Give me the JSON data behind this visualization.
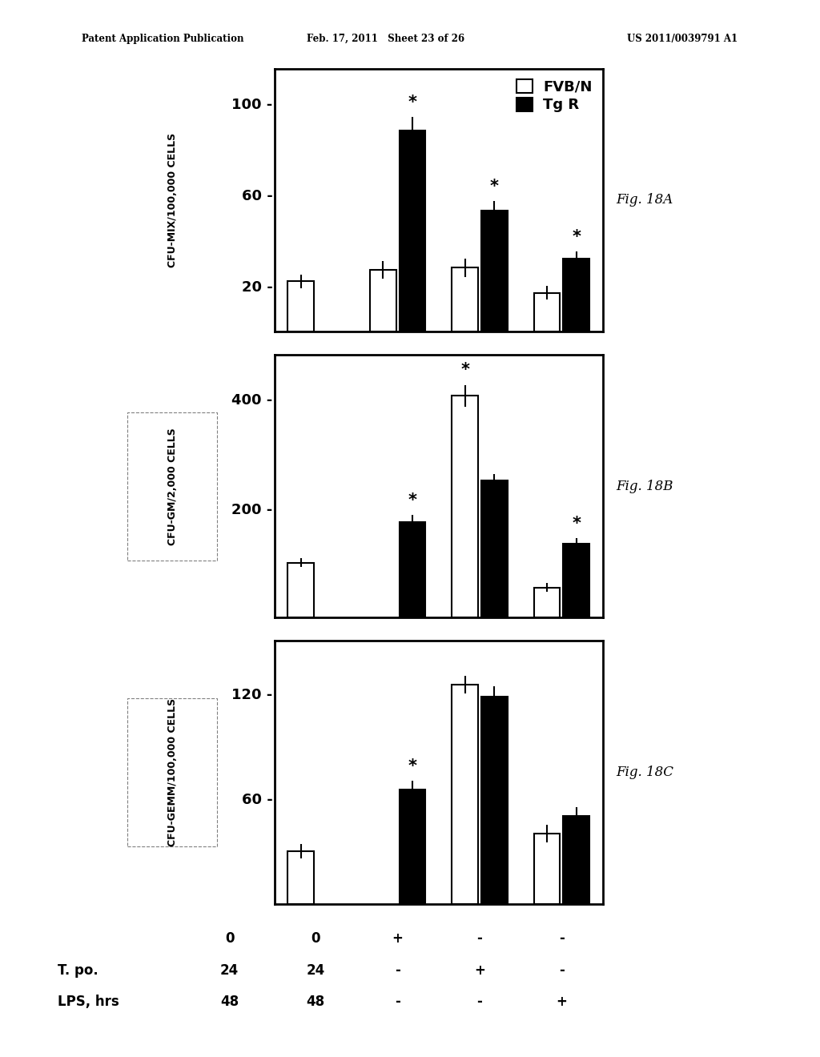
{
  "figA": {
    "ylabel": "CFU-MIX/100,000 CELLS",
    "yticks": [
      20,
      60,
      100
    ],
    "ylim": [
      0,
      115
    ],
    "fvb_values": [
      22,
      27,
      28,
      17
    ],
    "fvb_errors": [
      3,
      4,
      4,
      3
    ],
    "tgr_values": [
      null,
      88,
      53,
      32
    ],
    "tgr_errors": [
      null,
      6,
      4,
      3
    ],
    "stars_fvb": [
      false,
      false,
      false,
      false
    ],
    "stars_tgr": [
      false,
      true,
      true,
      true
    ],
    "fig_label": "Fig. 18A"
  },
  "figB": {
    "ylabel": "CFU-GM/2,000 CELLS",
    "yticks": [
      200,
      400
    ],
    "ylim": [
      0,
      480
    ],
    "fvb_values": [
      100,
      null,
      405,
      55
    ],
    "fvb_errors": [
      8,
      null,
      20,
      8
    ],
    "tgr_values": [
      null,
      175,
      250,
      135
    ],
    "tgr_errors": [
      null,
      12,
      12,
      10
    ],
    "stars_fvb": [
      false,
      false,
      true,
      false
    ],
    "stars_tgr": [
      false,
      true,
      false,
      true
    ],
    "fig_label": "Fig. 18B"
  },
  "figC": {
    "ylabel": "CFU-GEMM/100,000 CELLS",
    "yticks": [
      60,
      120
    ],
    "ylim": [
      0,
      150
    ],
    "fvb_values": [
      30,
      null,
      125,
      40
    ],
    "fvb_errors": [
      4,
      null,
      5,
      5
    ],
    "tgr_values": [
      null,
      65,
      118,
      50
    ],
    "tgr_errors": [
      null,
      5,
      6,
      5
    ],
    "stars_fvb": [
      false,
      false,
      false,
      false
    ],
    "stars_tgr": [
      false,
      true,
      false,
      false
    ],
    "fig_label": "Fig. 18C"
  },
  "legend": {
    "fvb_label": "FVB/N",
    "tgr_label": "Tg R"
  },
  "bar_width": 0.32,
  "group_positions": [
    1,
    2,
    3,
    4
  ],
  "fvb_color": "white",
  "tgr_color": "black",
  "edge_color": "black",
  "background_color": "white",
  "header_left": "Patent Application Publication",
  "header_mid": "Feb. 17, 2011   Sheet 23 of 26",
  "header_right": "US 2011/0039791 A1",
  "xtick_row0": [
    "0",
    "+",
    "-",
    "-"
  ],
  "xtick_row1": [
    "24",
    "-",
    "+",
    "-"
  ],
  "xtick_row2": [
    "48",
    "-",
    "-",
    "+"
  ],
  "xlabel_col0": [
    "",
    "T. po.",
    "LPS, hrs"
  ],
  "xlabel_nums": [
    "0",
    "24",
    "48"
  ]
}
